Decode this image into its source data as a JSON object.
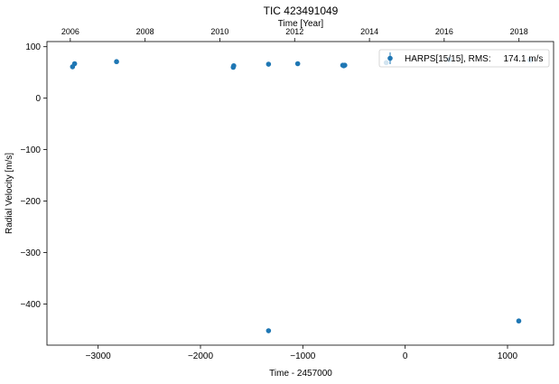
{
  "chart_data": {
    "type": "scatter",
    "title": "TIC 423491049",
    "xlabel": "Time - 2457000",
    "ylabel": "Radial Velocity [m/s]",
    "top_xlabel": "Time [Year]",
    "xlim": [
      -3500,
      1450
    ],
    "ylim": [
      -480,
      110
    ],
    "x_ticks": [
      -3000,
      -2000,
      -1000,
      0,
      1000
    ],
    "x_tick_labels": [
      "−3000",
      "−2000",
      "−1000",
      "0",
      "1000"
    ],
    "y_ticks": [
      100,
      0,
      -100,
      -200,
      -300,
      -400
    ],
    "y_tick_labels": [
      "100",
      "0",
      "−100",
      "−200",
      "−300",
      "−400"
    ],
    "top_ticks": [
      {
        "label": "2006",
        "x": -3272
      },
      {
        "label": "2008",
        "x": -2541
      },
      {
        "label": "2010",
        "x": -1811
      },
      {
        "label": "2012",
        "x": -1080
      },
      {
        "label": "2014",
        "x": -349
      },
      {
        "label": "2016",
        "x": 381
      },
      {
        "label": "2018",
        "x": 1112
      }
    ],
    "grid": false,
    "legend_position": "top-right",
    "marker_color": "#1f77b4",
    "series": [
      {
        "name": "HARPS[15/15], RMS:     174.1 m/s",
        "x": [
          -3250,
          -3230,
          -2820,
          -1680,
          -1675,
          -1335,
          -1050,
          -610,
          -600,
          -590,
          -185,
          430,
          1110,
          1220,
          -1335
        ],
        "y": [
          61,
          67,
          71,
          60,
          63,
          66,
          67,
          64,
          63,
          64,
          69,
          75,
          -433,
          74,
          -452
        ]
      }
    ]
  }
}
